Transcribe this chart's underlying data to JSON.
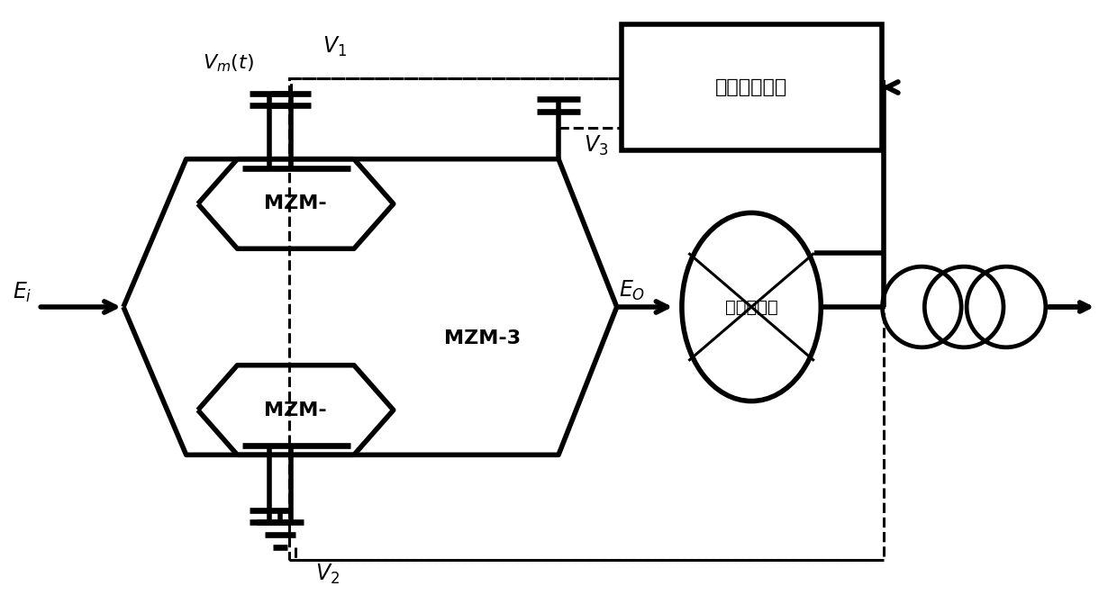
{
  "bg_color": "#ffffff",
  "line_color": "#000000",
  "lw": 2.2,
  "tlw": 4.0,
  "fig_width": 12.4,
  "fig_height": 6.81,
  "labels": {
    "Ei": "$E_i$",
    "Eo": "$E_O$",
    "Vm": "$V_m(t)$",
    "V1": "$V_1$",
    "V2": "$V_2$",
    "V3": "$V_3$",
    "MZM1": "MZM-",
    "MZM2": "MZM-",
    "MZM3": "MZM-3",
    "coupler": "光纤耦合器",
    "feedback": "反馈控制系统"
  }
}
